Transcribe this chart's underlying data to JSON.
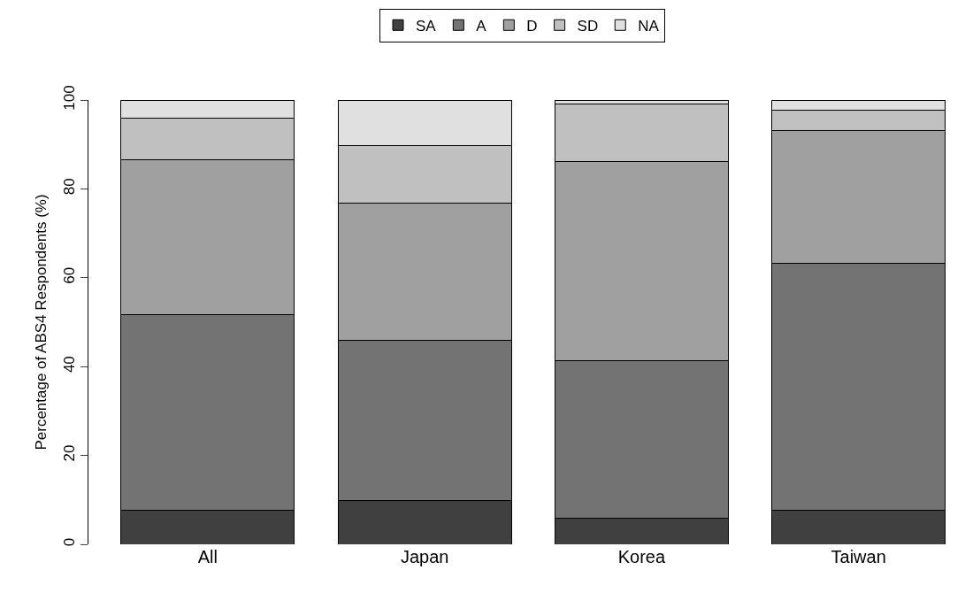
{
  "chart_data": {
    "type": "bar",
    "stacked": true,
    "ylabel": "Percentage of ABS4 Respondents (%)",
    "categories": [
      "All",
      "Japan",
      "Korea",
      "Taiwan"
    ],
    "ylim": [
      0,
      100
    ],
    "yticks": [
      0,
      20,
      40,
      60,
      80,
      100
    ],
    "grid": false,
    "legend": "top",
    "series": [
      {
        "name": "SA",
        "color": "#404040",
        "values": [
          7.7,
          9.8,
          5.8,
          7.7
        ]
      },
      {
        "name": "A",
        "color": "#737373",
        "values": [
          44.0,
          36.1,
          35.5,
          55.6
        ]
      },
      {
        "name": "D",
        "color": "#a0a0a0",
        "values": [
          34.8,
          30.9,
          44.8,
          29.9
        ]
      },
      {
        "name": "SD",
        "color": "#c0c0c0",
        "values": [
          9.4,
          13.0,
          13.1,
          4.5
        ]
      },
      {
        "name": "NA",
        "color": "#e0e0e0",
        "values": [
          4.1,
          10.2,
          0.8,
          2.3
        ]
      }
    ]
  }
}
